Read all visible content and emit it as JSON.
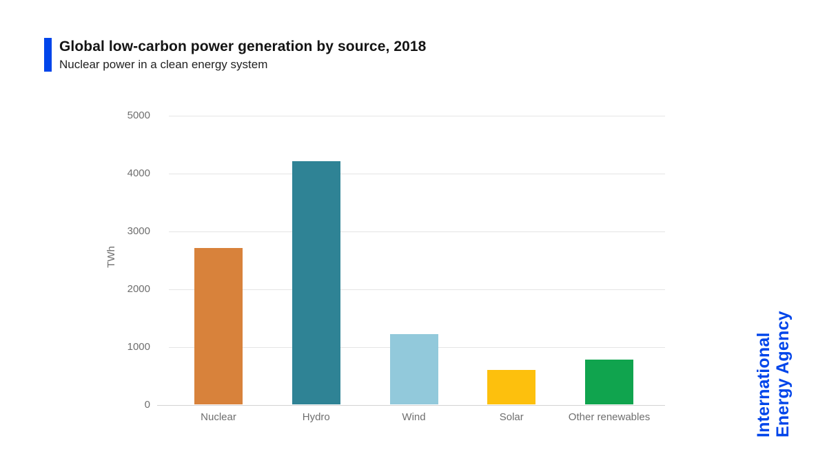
{
  "header": {
    "title": "Global low-carbon power generation by source, 2018",
    "subtitle": "Nuclear power in a clean energy system",
    "accent_color": "#0045ea"
  },
  "branding": {
    "line1": "International",
    "line2": "Energy Agency",
    "color": "#0045ea"
  },
  "chart_data": {
    "type": "bar",
    "title": "Global low-carbon power generation by source, 2018",
    "subtitle": "Nuclear power in a clean energy system",
    "categories": [
      "Nuclear",
      "Hydro",
      "Wind",
      "Solar",
      "Other renewables"
    ],
    "values": [
      2700,
      4200,
      1220,
      590,
      770
    ],
    "bar_colors": [
      "#d8823b",
      "#2f8395",
      "#92c9db",
      "#fdc00d",
      "#10a44e"
    ],
    "xlabel": "",
    "ylabel": "TWh",
    "ylim": [
      0,
      5000
    ],
    "yticks": [
      0,
      1000,
      2000,
      3000,
      4000,
      5000
    ],
    "grid": "horizontal-only",
    "legend": "none",
    "unit": "TWh"
  }
}
